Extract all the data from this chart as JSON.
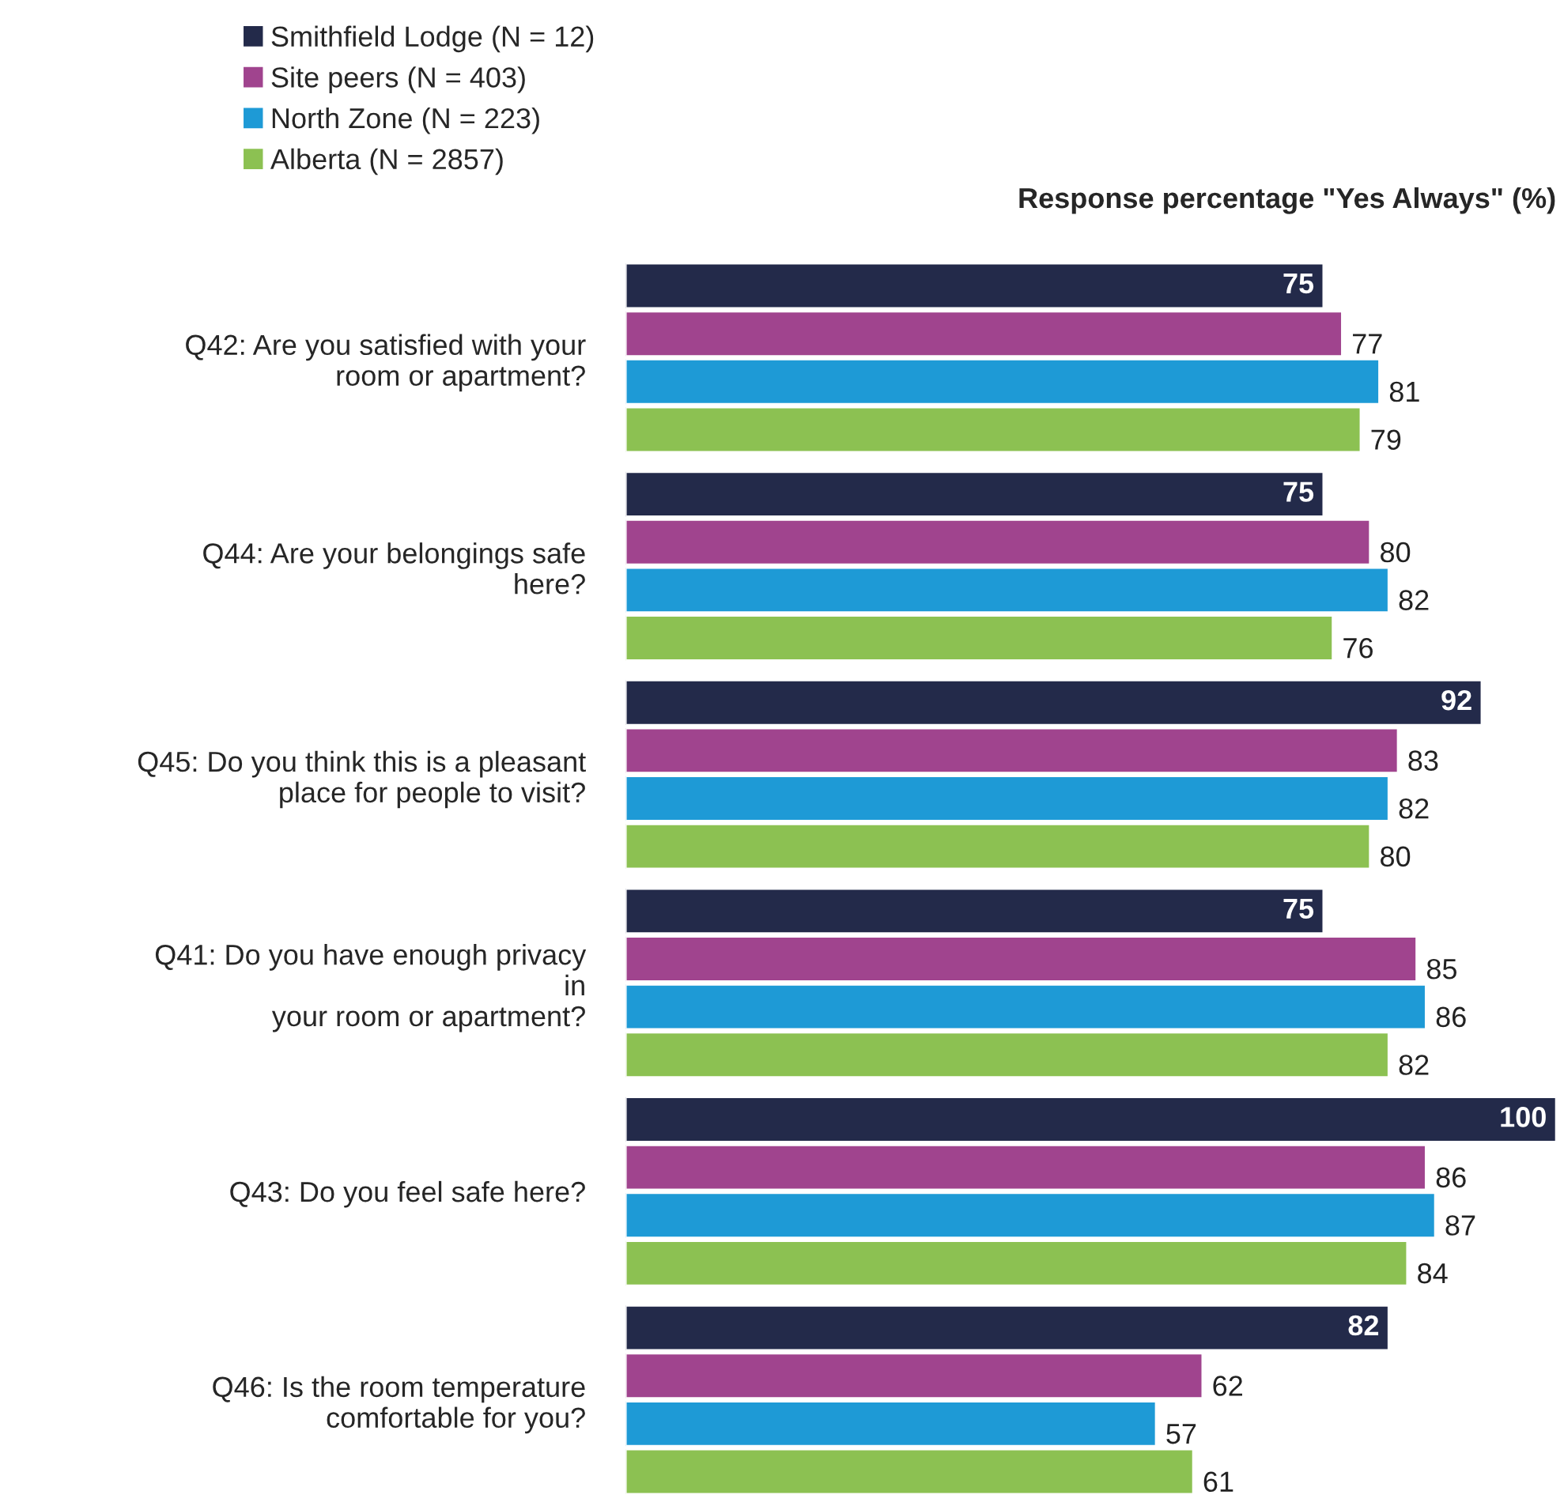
{
  "chart_data": {
    "type": "bar",
    "orientation": "horizontal",
    "title": "Response percentage \"Yes Always\" (%)",
    "categories": [
      "Q42: Are you satisfied with your\nroom or apartment?",
      "Q44: Are your belongings safe\nhere?",
      "Q45: Do you think this is a pleasant\nplace for people to visit?",
      "Q41: Do you have enough privacy\nin\nyour room or apartment?",
      "Q43: Do you feel safe here?",
      "Q46: Is the room temperature\ncomfortable for you?"
    ],
    "series": [
      {
        "name": "Smithfield Lodge (N = 12)",
        "color": "#232a4a",
        "values": [
          75,
          75,
          92,
          75,
          100,
          82
        ]
      },
      {
        "name": "Site peers (N = 403)",
        "color": "#a0448e",
        "values": [
          77,
          80,
          83,
          85,
          86,
          62
        ]
      },
      {
        "name": "North Zone (N = 223)",
        "color": "#1e9ad6",
        "values": [
          81,
          82,
          82,
          86,
          87,
          57
        ]
      },
      {
        "name": "Alberta (N = 2857)",
        "color": "#8cc152",
        "values": [
          79,
          76,
          80,
          82,
          84,
          61
        ]
      }
    ],
    "data_labels": true,
    "legend": "top left",
    "grid": false
  }
}
